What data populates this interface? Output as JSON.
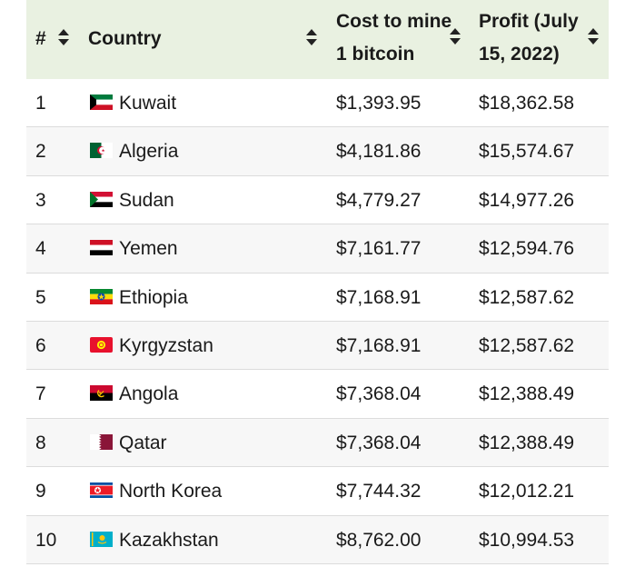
{
  "header": {
    "rank": "#",
    "country": "Country",
    "cost_line1": "Cost to mine",
    "cost_line2": "1 bitcoin",
    "profit_line1": "Profit (July",
    "profit_line2": "15, 2022)"
  },
  "rows": [
    {
      "rank": "1",
      "flag": "kuwait-flag-icon",
      "country": "Kuwait",
      "cost": "$1,393.95",
      "profit": "$18,362.58"
    },
    {
      "rank": "2",
      "flag": "algeria-flag-icon",
      "country": "Algeria",
      "cost": "$4,181.86",
      "profit": "$15,574.67"
    },
    {
      "rank": "3",
      "flag": "sudan-flag-icon",
      "country": "Sudan",
      "cost": "$4,779.27",
      "profit": "$14,977.26"
    },
    {
      "rank": "4",
      "flag": "yemen-flag-icon",
      "country": "Yemen",
      "cost": "$7,161.77",
      "profit": "$12,594.76"
    },
    {
      "rank": "5",
      "flag": "ethiopia-flag-icon",
      "country": "Ethiopia",
      "cost": "$7,168.91",
      "profit": "$12,587.62"
    },
    {
      "rank": "6",
      "flag": "kyrgyzstan-flag-icon",
      "country": "Kyrgyzstan",
      "cost": "$7,168.91",
      "profit": "$12,587.62"
    },
    {
      "rank": "7",
      "flag": "angola-flag-icon",
      "country": "Angola",
      "cost": "$7,368.04",
      "profit": "$12,388.49"
    },
    {
      "rank": "8",
      "flag": "qatar-flag-icon",
      "country": "Qatar",
      "cost": "$7,368.04",
      "profit": "$12,388.49"
    },
    {
      "rank": "9",
      "flag": "north-korea-flag-icon",
      "country": "North Korea",
      "cost": "$7,744.32",
      "profit": "$12,012.21"
    },
    {
      "rank": "10",
      "flag": "kazakhstan-flag-icon",
      "country": "Kazakhstan",
      "cost": "$8,762.00",
      "profit": "$10,994.53"
    }
  ],
  "colors": {
    "header_bg": "#e9f1e1",
    "row_alt_bg": "#f7f7f7",
    "border": "#dcdcdc"
  }
}
